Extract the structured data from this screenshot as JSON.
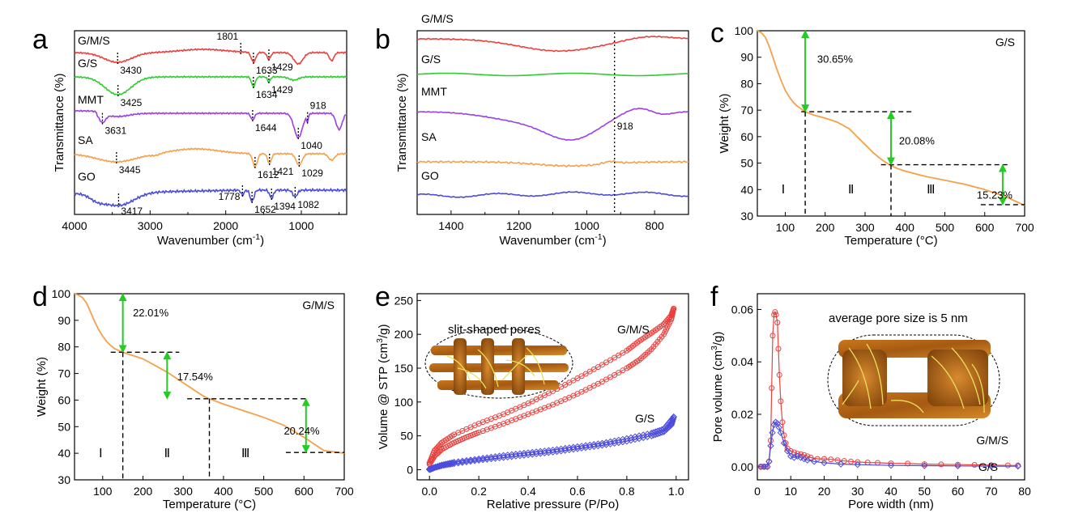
{
  "panels": {
    "a": {
      "letter": "a",
      "chart_data": {
        "type": "line",
        "xlabel": "Wavenumber (cm",
        "xlabel_sup": "-1",
        "xlabel_tail": ")",
        "ylabel": "Transmittance (%)",
        "xlim": [
          4000,
          400
        ],
        "xticks": [
          4000,
          3000,
          2000,
          1000
        ],
        "series": [
          {
            "name": "G/M/S",
            "color": "#e8413e",
            "peaks": [
              {
                "x": 3430,
                "label": "3430"
              },
              {
                "x": 1801,
                "label": "1801"
              },
              {
                "x": 1633,
                "label": "1633"
              },
              {
                "x": 1429,
                "label": "1429"
              }
            ]
          },
          {
            "name": "G/S",
            "color": "#2ecc2e",
            "peaks": [
              {
                "x": 3425,
                "label": "3425"
              },
              {
                "x": 1634,
                "label": "1634"
              },
              {
                "x": 1429,
                "label": "1429"
              }
            ]
          },
          {
            "name": "MMT",
            "color": "#9b3fe6",
            "peaks": [
              {
                "x": 3631,
                "label": "3631"
              },
              {
                "x": 1644,
                "label": "1644"
              },
              {
                "x": 1040,
                "label": "1040"
              },
              {
                "x": 918,
                "label": "918"
              }
            ]
          },
          {
            "name": "SA",
            "color": "#f5a04a",
            "peaks": [
              {
                "x": 3445,
                "label": "3445"
              },
              {
                "x": 1612,
                "label": "1612"
              },
              {
                "x": 1421,
                "label": "1421"
              },
              {
                "x": 1029,
                "label": "1029"
              }
            ]
          },
          {
            "name": "GO",
            "color": "#4b4bdc",
            "peaks": [
              {
                "x": 3417,
                "label": "3417"
              },
              {
                "x": 1778,
                "label": "1778"
              },
              {
                "x": 1652,
                "label": "1652"
              },
              {
                "x": 1394,
                "label": "1394"
              },
              {
                "x": 1082,
                "label": "1082"
              }
            ]
          }
        ]
      }
    },
    "b": {
      "letter": "b",
      "chart_data": {
        "type": "line",
        "xlabel": "Wavenumber (cm",
        "xlabel_sup": "-1",
        "xlabel_tail": ")",
        "ylabel": "Transmittance (%)",
        "xlim": [
          1500,
          700
        ],
        "xticks": [
          1400,
          1200,
          1000,
          800
        ],
        "marker_line": {
          "x": 918,
          "label": "918"
        },
        "series": [
          {
            "name": "G/M/S",
            "color": "#e8413e"
          },
          {
            "name": "G/S",
            "color": "#2ecc2e"
          },
          {
            "name": "MMT",
            "color": "#9b3fe6"
          },
          {
            "name": "SA",
            "color": "#f5a04a"
          },
          {
            "name": "GO",
            "color": "#4b4bdc"
          }
        ]
      }
    },
    "c": {
      "letter": "c",
      "tag": "G/S",
      "chart_data": {
        "type": "line",
        "xlabel": "Temperature (°C)",
        "ylabel": "Weight (%)",
        "xlim": [
          30,
          700
        ],
        "ylim": [
          30,
          100
        ],
        "xticks": [
          100,
          200,
          300,
          400,
          500,
          600,
          700
        ],
        "yticks": [
          30,
          40,
          50,
          60,
          70,
          80,
          90,
          100
        ],
        "color": "#f5a04a",
        "x": [
          30,
          40,
          50,
          60,
          70,
          80,
          90,
          100,
          110,
          120,
          130,
          150,
          170,
          200,
          230,
          260,
          280,
          300,
          320,
          340,
          360,
          380,
          400,
          450,
          500,
          550,
          600,
          650,
          700
        ],
        "y": [
          100,
          99.3,
          97.5,
          94,
          89.5,
          85,
          81,
          77.5,
          75,
          73,
          71.5,
          69.4,
          68.2,
          67,
          65.5,
          63,
          60,
          57,
          54,
          51.5,
          49.5,
          48,
          47,
          45,
          43.5,
          42,
          40,
          37.5,
          34
        ],
        "stages": [
          {
            "x1": 30,
            "x2": 150,
            "loss": "30.65%",
            "roman": "Ⅰ"
          },
          {
            "x1": 150,
            "x2": 365,
            "loss": "20.08%",
            "roman": "Ⅱ"
          },
          {
            "x1": 365,
            "x2": 700,
            "loss": "15.23%",
            "roman": "Ⅲ"
          }
        ],
        "arrows": [
          {
            "x": 150,
            "y1": 100,
            "y2": 69.4
          },
          {
            "x": 365,
            "y1": 69.4,
            "y2": 49.4
          },
          {
            "x": 645,
            "y1": 49.4,
            "y2": 34.3
          }
        ],
        "levels": [
          69.4,
          49.4,
          34.3
        ],
        "dividers": [
          150,
          365
        ]
      }
    },
    "d": {
      "letter": "d",
      "tag": "G/M/S",
      "chart_data": {
        "type": "line",
        "xlabel": "Temperature (°C)",
        "ylabel": "Weight (%)",
        "xlim": [
          30,
          700
        ],
        "ylim": [
          30,
          100
        ],
        "xticks": [
          100,
          200,
          300,
          400,
          500,
          600,
          700
        ],
        "yticks": [
          30,
          40,
          50,
          60,
          70,
          80,
          90,
          100
        ],
        "color": "#f5a04a",
        "x": [
          30,
          40,
          50,
          60,
          70,
          80,
          90,
          100,
          110,
          120,
          130,
          150,
          170,
          200,
          230,
          260,
          290,
          320,
          350,
          365,
          400,
          450,
          500,
          550,
          600,
          650,
          700
        ],
        "y": [
          100,
          99.5,
          98.5,
          96.5,
          93,
          89.5,
          86.5,
          84,
          82,
          80.5,
          79.3,
          78,
          77,
          75.5,
          73,
          70.5,
          67.5,
          64.5,
          61.5,
          60.5,
          58.5,
          56,
          53.5,
          50.5,
          46,
          41,
          40
        ],
        "stages": [
          {
            "x1": 30,
            "x2": 150,
            "loss": "22.01%",
            "roman": "Ⅰ"
          },
          {
            "x1": 150,
            "x2": 365,
            "loss": "17.54%",
            "roman": "Ⅱ"
          },
          {
            "x1": 365,
            "x2": 700,
            "loss": "20.24%",
            "roman": "Ⅲ"
          }
        ],
        "arrows": [
          {
            "x": 150,
            "y1": 100,
            "y2": 78
          },
          {
            "x": 260,
            "y1": 78,
            "y2": 60.5
          },
          {
            "x": 605,
            "y1": 60.5,
            "y2": 40.3
          }
        ],
        "levels": [
          78,
          60.5,
          40.3
        ],
        "dividers": [
          150,
          365
        ]
      }
    },
    "e": {
      "letter": "e",
      "inset_label": "slit-shaped pores",
      "chart_data": {
        "type": "scatter",
        "xlabel": "Relative pressure (P/Po)",
        "ylabel": "Volume @ STP (cm",
        "ylabel_sup": "3",
        "ylabel_tail": "/g)",
        "xlim": [
          -0.05,
          1.05
        ],
        "ylim": [
          -15,
          260
        ],
        "xticks": [
          0.0,
          0.2,
          0.4,
          0.6,
          0.8,
          1.0
        ],
        "yticks": [
          0,
          50,
          100,
          150,
          200,
          250
        ],
        "series": [
          {
            "name": "G/M/S",
            "color": "#e8413e",
            "marker": "circle",
            "adsorption": {
              "x": [
                0.0,
                0.02,
                0.05,
                0.1,
                0.15,
                0.2,
                0.3,
                0.4,
                0.5,
                0.6,
                0.7,
                0.8,
                0.85,
                0.9,
                0.95,
                0.98,
                0.99
              ],
              "y": [
                8,
                20,
                30,
                40,
                48,
                55,
                68,
                82,
                96,
                112,
                130,
                150,
                162,
                178,
                200,
                222,
                238
              ]
            },
            "desorption": {
              "x": [
                0.99,
                0.98,
                0.95,
                0.9,
                0.85,
                0.8,
                0.7,
                0.6,
                0.5,
                0.4,
                0.3,
                0.2,
                0.1,
                0.05,
                0.02,
                0.0
              ],
              "y": [
                238,
                228,
                215,
                202,
                190,
                176,
                155,
                135,
                116,
                98,
                82,
                68,
                52,
                40,
                28,
                10
              ]
            }
          },
          {
            "name": "G/S",
            "color": "#4b4bdc",
            "marker": "diamond",
            "adsorption": {
              "x": [
                0.0,
                0.02,
                0.05,
                0.1,
                0.2,
                0.3,
                0.4,
                0.5,
                0.6,
                0.7,
                0.8,
                0.9,
                0.95,
                0.98,
                0.99
              ],
              "y": [
                0,
                3,
                6,
                9,
                14,
                18,
                22,
                26,
                31,
                36,
                42,
                50,
                56,
                66,
                78
              ]
            },
            "desorption": {
              "x": [
                0.99,
                0.95,
                0.9,
                0.8,
                0.7,
                0.6,
                0.5,
                0.4,
                0.3,
                0.2,
                0.1,
                0.05,
                0.0
              ],
              "y": [
                78,
                60,
                54,
                46,
                39,
                34,
                29,
                25,
                21,
                16,
                11,
                7,
                1
              ]
            }
          }
        ]
      }
    },
    "f": {
      "letter": "f",
      "inset_label": "average pore size is 5 nm",
      "chart_data": {
        "type": "scatter",
        "xlabel": "Pore width (nm)",
        "ylabel": "Pore volume (cm",
        "ylabel_sup": "3",
        "ylabel_tail": "/g)",
        "xlim": [
          0,
          80
        ],
        "ylim": [
          -0.005,
          0.066
        ],
        "xticks": [
          0,
          10,
          20,
          30,
          40,
          50,
          60,
          70,
          80
        ],
        "yticks": [
          0.0,
          0.02,
          0.04,
          0.06
        ],
        "ytick_labels": [
          "0.00",
          "0.02",
          "0.04",
          "0.06"
        ],
        "series": [
          {
            "name": "G/M/S",
            "color": "#e8413e",
            "marker": "circle",
            "x": [
              1,
              1.5,
              2,
              2.5,
              3,
              3.5,
              4,
              4.3,
              4.6,
              5,
              5.3,
              5.6,
              6,
              6.3,
              6.6,
              7,
              7.5,
              8,
              8.5,
              9,
              10,
              11,
              12,
              13,
              14,
              15,
              16,
              18,
              20,
              22,
              24,
              26,
              28,
              30,
              33,
              36,
              40,
              45,
              50,
              55,
              60,
              65,
              70,
              75,
              78
            ],
            "y": [
              0,
              0,
              0,
              0,
              0,
              0.002,
              0.01,
              0.03,
              0.05,
              0.058,
              0.059,
              0.058,
              0.055,
              0.045,
              0.035,
              0.025,
              0.017,
              0.012,
              0.009,
              0.007,
              0.006,
              0.0055,
              0.005,
              0.0048,
              0.0045,
              0.004,
              0.0035,
              0.003,
              0.003,
              0.0028,
              0.0025,
              0.0022,
              0.002,
              0.0018,
              0.0016,
              0.0015,
              0.0013,
              0.0012,
              0.001,
              0.0009,
              0.0008,
              0.0007,
              0.0006,
              0.0005,
              0.0005
            ]
          },
          {
            "name": "G/S",
            "color": "#4b4bdc",
            "marker": "diamond",
            "x": [
              1,
              2,
              3,
              3.5,
              4,
              4.5,
              5,
              5.5,
              6,
              6.5,
              7,
              8,
              9,
              10,
              11,
              12,
              13,
              14,
              15,
              17,
              20,
              25,
              30,
              40,
              50,
              60,
              70,
              78
            ],
            "y": [
              0,
              0,
              0,
              0.002,
              0.008,
              0.013,
              0.016,
              0.017,
              0.0165,
              0.015,
              0.013,
              0.009,
              0.006,
              0.004,
              0.0035,
              0.004,
              0.0035,
              0.003,
              0.0025,
              0.002,
              0.0015,
              0.001,
              0.0008,
              0.0005,
              0.0004,
              0.0003,
              0.0002,
              0.0002
            ]
          }
        ]
      }
    }
  }
}
